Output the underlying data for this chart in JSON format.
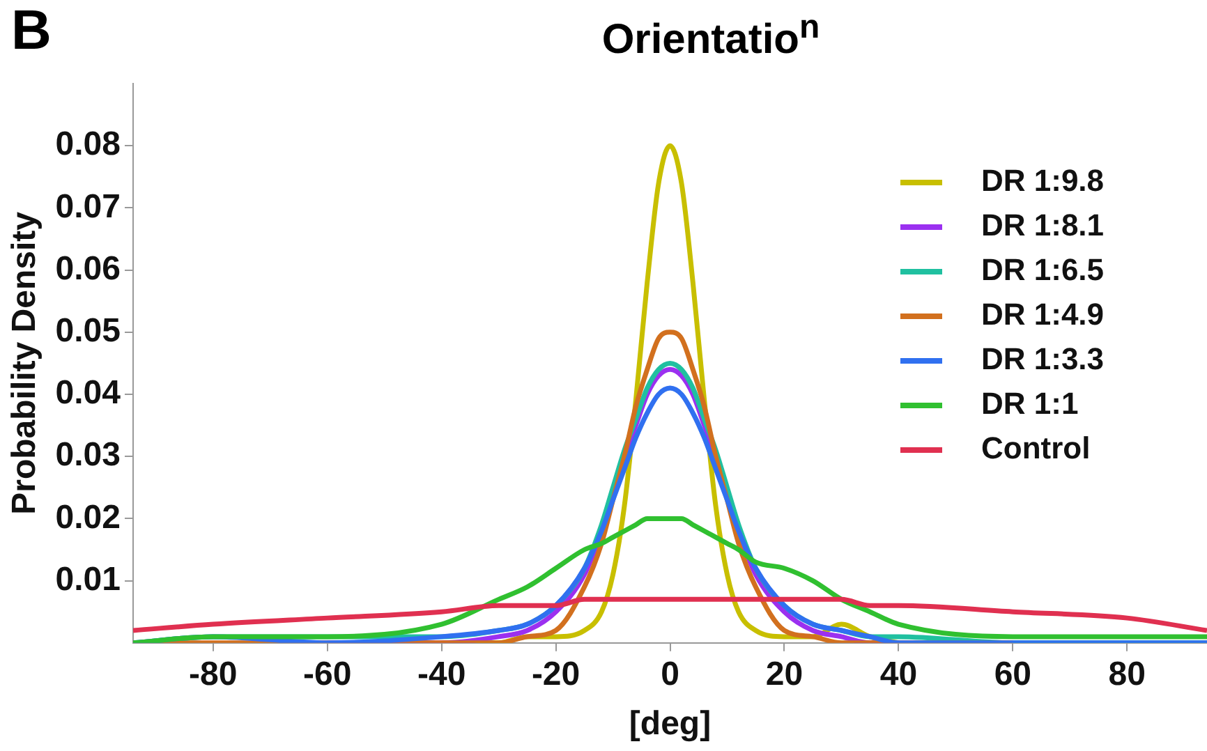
{
  "chart_data": {
    "type": "line",
    "title": "Orientatio$^{n}$",
    "xlabel": "[deg]",
    "ylabel": "Probability Density",
    "annotations": [
      "B"
    ],
    "x": [
      -94,
      -80,
      -60,
      -40,
      -30,
      -25,
      -20,
      -15,
      -12,
      -10,
      -8,
      -6,
      -4,
      -2,
      0,
      2,
      4,
      6,
      8,
      10,
      12,
      15,
      20,
      25,
      30,
      35,
      40,
      60,
      80,
      94
    ],
    "series": [
      {
        "name": "DR 1:9.8",
        "color": "#c8bf00",
        "values": [
          null,
          null,
          null,
          0,
          0,
          0.001,
          0.001,
          0.002,
          0.005,
          0.011,
          0.022,
          0.039,
          0.058,
          0.074,
          0.08,
          0.074,
          0.058,
          0.039,
          0.022,
          0.011,
          0.005,
          0.002,
          0.001,
          0.001,
          0.003,
          0.001,
          0,
          null,
          null,
          null
        ]
      },
      {
        "name": "DR 1:8.1",
        "color": "#9b30f0",
        "values": [
          null,
          null,
          0,
          0,
          0.001,
          0.002,
          0.005,
          0.011,
          0.018,
          0.024,
          0.03,
          0.035,
          0.04,
          0.043,
          0.044,
          0.043,
          0.04,
          0.035,
          0.03,
          0.024,
          0.018,
          0.011,
          0.005,
          0.002,
          0.001,
          0,
          0,
          null,
          null,
          null
        ]
      },
      {
        "name": "DR 1:6.5",
        "color": "#20c0a0",
        "values": [
          0,
          0.001,
          0.001,
          0.001,
          0.002,
          0.003,
          0.006,
          0.012,
          0.019,
          0.025,
          0.031,
          0.036,
          0.041,
          0.044,
          0.045,
          0.044,
          0.041,
          0.036,
          0.031,
          0.025,
          0.019,
          0.012,
          0.006,
          0.003,
          0.002,
          0.001,
          0.001,
          0,
          0,
          0
        ]
      },
      {
        "name": "DR 1:4.9",
        "color": "#d2701e",
        "values": [
          0,
          0,
          0,
          0,
          0,
          0.001,
          0.002,
          0.009,
          0.016,
          0.023,
          0.03,
          0.038,
          0.044,
          0.049,
          0.05,
          0.049,
          0.044,
          0.038,
          0.03,
          0.023,
          0.016,
          0.009,
          0.002,
          0.001,
          0,
          0,
          0,
          0,
          null,
          null
        ]
      },
      {
        "name": "DR 1:3.3",
        "color": "#3070f0",
        "values": [
          0,
          0.001,
          0,
          0.001,
          0.002,
          0.003,
          0.006,
          0.012,
          0.018,
          0.023,
          0.028,
          0.033,
          0.037,
          0.04,
          0.041,
          0.04,
          0.037,
          0.033,
          0.028,
          0.023,
          0.018,
          0.012,
          0.006,
          0.003,
          0.002,
          0.001,
          0,
          0,
          0,
          0
        ]
      },
      {
        "name": "DR 1:1",
        "color": "#30c030",
        "values": [
          0,
          0.001,
          0.001,
          0.003,
          0.007,
          0.009,
          0.012,
          0.015,
          0.016,
          0.017,
          0.018,
          0.019,
          0.02,
          0.02,
          0.02,
          0.02,
          0.019,
          0.018,
          0.017,
          0.016,
          0.015,
          0.013,
          0.012,
          0.01,
          0.007,
          0.005,
          0.003,
          0.001,
          0.001,
          0.001
        ]
      },
      {
        "name": "Control",
        "color": "#e03050",
        "values": [
          0.002,
          0.003,
          0.004,
          0.005,
          0.006,
          0.006,
          0.006,
          0.007,
          0.007,
          0.007,
          0.007,
          0.007,
          0.007,
          0.007,
          0.007,
          0.007,
          0.007,
          0.007,
          0.007,
          0.007,
          0.007,
          0.007,
          0.007,
          0.007,
          0.007,
          0.006,
          0.006,
          0.005,
          0.004,
          0.002
        ]
      }
    ],
    "xlim": [
      -94,
      94
    ],
    "xticks": [
      -80,
      -60,
      -40,
      -20,
      0,
      20,
      40,
      60,
      80
    ],
    "ylim": [
      0,
      0.09
    ],
    "yticks": [
      0.01,
      0.02,
      0.03,
      0.04,
      0.05,
      0.06,
      0.07,
      0.08
    ],
    "grid": false,
    "legend": "top right",
    "marker": "none",
    "line_style": "solid"
  }
}
